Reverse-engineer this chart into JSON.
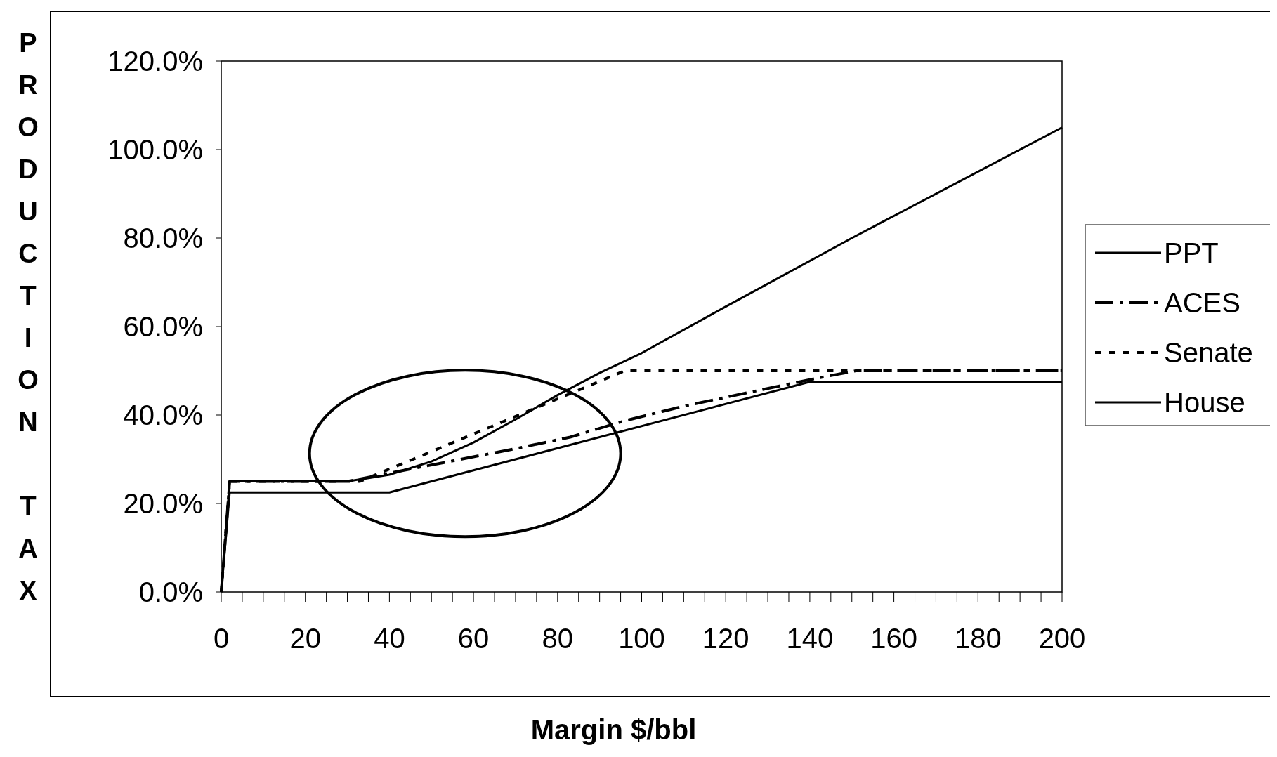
{
  "chart_data": {
    "type": "line",
    "xlabel": "Margin $/bbl",
    "ylabel": "PRODUCTION TAX",
    "x": [
      0,
      2,
      30,
      40,
      50,
      60,
      70,
      80,
      90,
      100,
      120,
      150,
      200
    ],
    "series": [
      {
        "name": "PPT",
        "color": "#000000",
        "line_style": "solid",
        "values": [
          0,
          25,
          25,
          26.5,
          29.5,
          33.8,
          39,
          44.5,
          49.5,
          54,
          64.5,
          80,
          105
        ]
      },
      {
        "name": "ACES",
        "color": "#000000",
        "line_style": "dashed",
        "x": [
          0,
          2,
          30,
          57,
          70,
          83,
          96,
          110,
          125,
          140,
          151,
          200
        ],
        "values": [
          0,
          25,
          25,
          30,
          32.4,
          35,
          38.7,
          42,
          45,
          48,
          50,
          50
        ]
      },
      {
        "name": "Senate",
        "color": "#000000",
        "line_style": "dotted",
        "x": [
          0,
          2,
          33,
          96,
          200
        ],
        "values": [
          0,
          25,
          25,
          50,
          50
        ]
      },
      {
        "name": "House",
        "color": "#000000",
        "line_style": "solid",
        "x": [
          0,
          2,
          40,
          140,
          200
        ],
        "values": [
          0,
          22.5,
          22.5,
          47.5,
          47.5
        ]
      }
    ],
    "xlim": [
      0,
      200
    ],
    "xticks": [
      0,
      {
        "value": 5,
        "label": null
      },
      {
        "value": 10,
        "label": null
      },
      {
        "value": 15,
        "label": null
      },
      20,
      {
        "value": 25,
        "label": null
      },
      {
        "value": 30,
        "label": null
      },
      {
        "value": 35,
        "label": null
      },
      40,
      {
        "value": 45,
        "label": null
      },
      {
        "value": 50,
        "label": null
      },
      {
        "value": 55,
        "label": null
      },
      60,
      {
        "value": 65,
        "label": null
      },
      {
        "value": 70,
        "label": null
      },
      {
        "value": 75,
        "label": null
      },
      80,
      {
        "value": 85,
        "label": null
      },
      {
        "value": 90,
        "label": null
      },
      {
        "value": 95,
        "label": null
      },
      100,
      {
        "value": 105,
        "label": null
      },
      {
        "value": 110,
        "label": null
      },
      {
        "value": 115,
        "label": null
      },
      120,
      {
        "value": 125,
        "label": null
      },
      {
        "value": 130,
        "label": null
      },
      {
        "value": 135,
        "label": null
      },
      140,
      {
        "value": 145,
        "label": null
      },
      {
        "value": 150,
        "label": null
      },
      {
        "value": 155,
        "label": null
      },
      160,
      {
        "value": 165,
        "label": null
      },
      {
        "value": 170,
        "label": null
      },
      {
        "value": 175,
        "label": null
      },
      180,
      {
        "value": 185,
        "label": null
      },
      {
        "value": 190,
        "label": null
      },
      {
        "value": 195,
        "label": null
      },
      200
    ],
    "ylim": [
      0,
      120
    ],
    "yticks": [
      {
        "value": 0,
        "label": "0.0%"
      },
      {
        "value": 20,
        "label": "20.0%"
      },
      {
        "value": 40,
        "label": "40.0%"
      },
      {
        "value": 60,
        "label": "60.0%"
      },
      {
        "value": 80,
        "label": "80.0%"
      },
      {
        "value": 100,
        "label": "100.0%"
      },
      {
        "value": 120,
        "label": "120.0%"
      }
    ],
    "legend": "right",
    "grid": false,
    "marker": "none"
  }
}
